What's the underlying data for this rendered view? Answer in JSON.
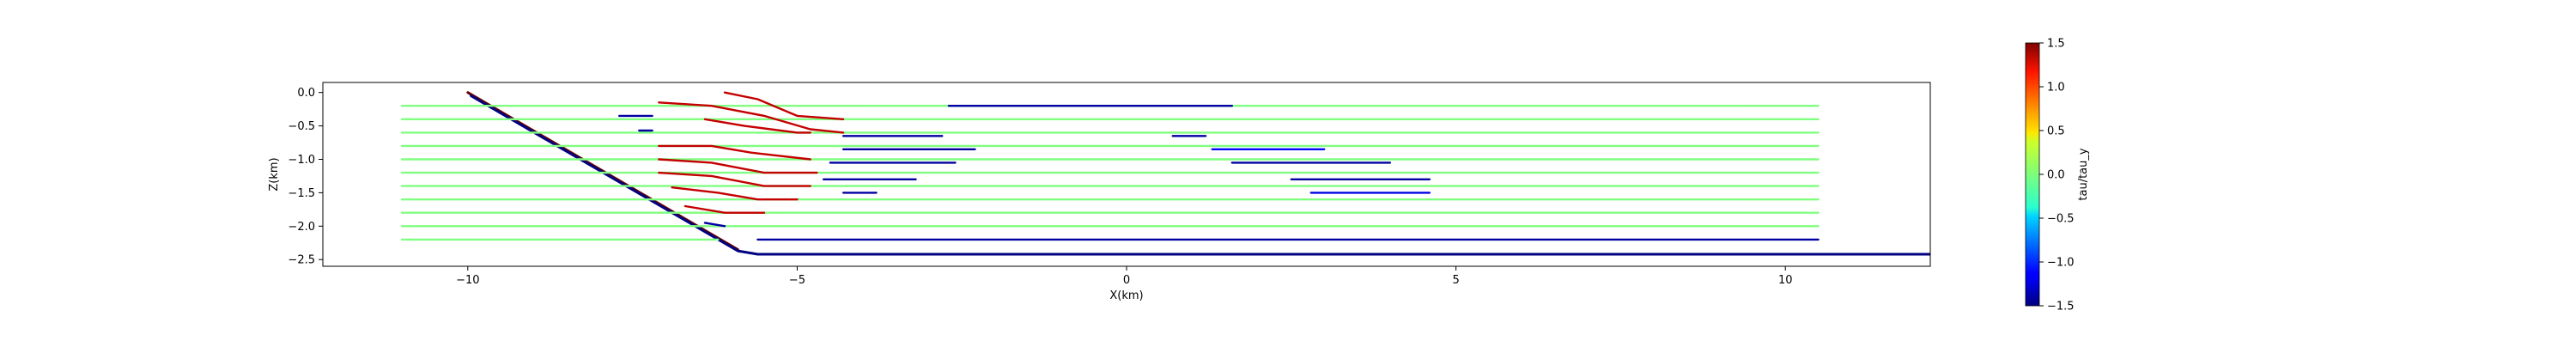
{
  "chart_data": {
    "type": "line",
    "title": "",
    "xlabel": "X(km)",
    "ylabel": "Z(km)",
    "xlim": [
      -12.2,
      12.2
    ],
    "ylim": [
      -2.6,
      0.15
    ],
    "xticks": [
      -10,
      -5,
      0,
      5,
      10
    ],
    "xtick_labels": [
      "−10",
      "−5",
      "0",
      "5",
      "10"
    ],
    "yticks": [
      0.0,
      -0.5,
      -1.0,
      -1.5,
      -2.0,
      -2.5
    ],
    "ytick_labels": [
      "0.0",
      "−0.5",
      "−1.0",
      "−1.5",
      "−2.0",
      "−2.5"
    ],
    "grid": false,
    "colorbar": {
      "label": "tau/tau_y",
      "colormap": "jet",
      "range": [
        -1.5,
        1.5
      ],
      "ticks": [
        1.5,
        1.0,
        0.5,
        0.0,
        -0.5,
        -1.0,
        -1.5
      ],
      "tick_labels": [
        "1.5",
        "1.0",
        "0.5",
        "0.0",
        "−0.5",
        "−1.0",
        "−1.5"
      ]
    },
    "layer_depths": [
      -0.2,
      -0.4,
      -0.6,
      -0.8,
      -1.0,
      -1.2,
      -1.4,
      -1.6,
      -1.8,
      -2.0,
      -2.2
    ],
    "layer_x_range": [
      -11.0,
      10.5
    ],
    "series": [
      {
        "role": "fault",
        "color": "#6b0000",
        "points": [
          [
            -10.0,
            0.0
          ],
          [
            -5.9,
            -2.35
          ]
        ]
      },
      {
        "role": "fault",
        "color": "#000080",
        "points": [
          [
            -9.95,
            -0.05
          ],
          [
            -5.9,
            -2.37
          ],
          [
            -5.6,
            -2.42
          ],
          [
            12.2,
            -2.42
          ]
        ]
      },
      {
        "role": "layer",
        "tau": 0.0,
        "points": [
          [
            -11.0,
            -0.2
          ],
          [
            -4.3,
            -0.2
          ]
        ]
      },
      {
        "role": "layer",
        "tau": 0.0,
        "points": [
          [
            -11.0,
            -0.4
          ],
          [
            -4.3,
            -0.4
          ]
        ]
      },
      {
        "role": "layer",
        "tau": 0.0,
        "points": [
          [
            -11.0,
            -0.6
          ],
          [
            -4.8,
            -0.6
          ]
        ]
      },
      {
        "role": "layer",
        "tau": 0.0,
        "points": [
          [
            -11.0,
            -0.8
          ],
          [
            -4.8,
            -0.8
          ]
        ]
      },
      {
        "role": "layer",
        "tau": 0.0,
        "points": [
          [
            -11.0,
            -1.0
          ],
          [
            -4.8,
            -1.0
          ]
        ]
      },
      {
        "role": "layer",
        "tau": 0.0,
        "points": [
          [
            -11.0,
            -1.2
          ],
          [
            -4.7,
            -1.2
          ]
        ]
      },
      {
        "role": "layer",
        "tau": 0.0,
        "points": [
          [
            -11.0,
            -1.4
          ],
          [
            -4.8,
            -1.4
          ]
        ]
      },
      {
        "role": "layer",
        "tau": 0.0,
        "points": [
          [
            -11.0,
            -1.6
          ],
          [
            -5.0,
            -1.6
          ]
        ]
      },
      {
        "role": "layer",
        "tau": 0.0,
        "points": [
          [
            -11.0,
            -1.8
          ],
          [
            -5.3,
            -1.8
          ]
        ]
      },
      {
        "role": "layer",
        "tau": 0.0,
        "points": [
          [
            -11.0,
            -2.0
          ],
          [
            -5.7,
            -2.0
          ]
        ]
      },
      {
        "role": "layer",
        "tau": 0.0,
        "points": [
          [
            -11.0,
            -2.2
          ],
          [
            -6.2,
            -2.2
          ]
        ]
      },
      {
        "role": "layer",
        "tau": 0.0,
        "points": [
          [
            -4.3,
            -0.2
          ],
          [
            10.5,
            -0.2
          ]
        ]
      },
      {
        "role": "layer",
        "tau": 0.0,
        "points": [
          [
            -4.3,
            -0.4
          ],
          [
            10.5,
            -0.4
          ]
        ]
      },
      {
        "role": "layer",
        "tau": 0.0,
        "points": [
          [
            -4.8,
            -0.6
          ],
          [
            10.5,
            -0.6
          ]
        ]
      },
      {
        "role": "layer",
        "tau": 0.0,
        "points": [
          [
            -4.8,
            -0.8
          ],
          [
            10.5,
            -0.8
          ]
        ]
      },
      {
        "role": "layer",
        "tau": 0.0,
        "points": [
          [
            -4.8,
            -1.0
          ],
          [
            10.5,
            -1.0
          ]
        ]
      },
      {
        "role": "layer",
        "tau": 0.0,
        "points": [
          [
            -4.7,
            -1.2
          ],
          [
            10.5,
            -1.2
          ]
        ]
      },
      {
        "role": "layer",
        "tau": 0.0,
        "points": [
          [
            -4.8,
            -1.4
          ],
          [
            10.5,
            -1.4
          ]
        ]
      },
      {
        "role": "layer",
        "tau": 0.0,
        "points": [
          [
            -5.0,
            -1.6
          ],
          [
            10.5,
            -1.6
          ]
        ]
      },
      {
        "role": "layer",
        "tau": 0.0,
        "points": [
          [
            -5.3,
            -1.8
          ],
          [
            10.5,
            -1.8
          ]
        ]
      },
      {
        "role": "layer",
        "tau": 0.0,
        "points": [
          [
            -5.7,
            -2.0
          ],
          [
            10.5,
            -2.0
          ]
        ]
      },
      {
        "role": "layer",
        "tau": 1.3,
        "points": [
          [
            -6.1,
            0.0
          ],
          [
            -5.6,
            -0.1
          ],
          [
            -5.0,
            -0.35
          ],
          [
            -4.3,
            -0.4
          ]
        ]
      },
      {
        "role": "layer",
        "tau": 1.3,
        "points": [
          [
            -7.1,
            -0.15
          ],
          [
            -6.3,
            -0.2
          ],
          [
            -5.5,
            -0.35
          ],
          [
            -4.8,
            -0.55
          ],
          [
            -4.3,
            -0.6
          ]
        ]
      },
      {
        "role": "layer",
        "tau": 1.3,
        "points": [
          [
            -6.4,
            -0.4
          ],
          [
            -5.8,
            -0.5
          ],
          [
            -5.0,
            -0.6
          ],
          [
            -4.8,
            -0.6
          ]
        ]
      },
      {
        "role": "layer",
        "tau": 1.3,
        "points": [
          [
            -7.1,
            -0.8
          ],
          [
            -6.3,
            -0.8
          ],
          [
            -5.7,
            -0.9
          ],
          [
            -4.8,
            -1.0
          ]
        ]
      },
      {
        "role": "layer",
        "tau": 1.3,
        "points": [
          [
            -7.1,
            -1.0
          ],
          [
            -6.3,
            -1.05
          ],
          [
            -5.5,
            -1.2
          ],
          [
            -4.7,
            -1.2
          ]
        ]
      },
      {
        "role": "layer",
        "tau": 1.3,
        "points": [
          [
            -7.1,
            -1.2
          ],
          [
            -6.3,
            -1.25
          ],
          [
            -5.5,
            -1.4
          ],
          [
            -4.8,
            -1.4
          ]
        ]
      },
      {
        "role": "layer",
        "tau": 1.3,
        "points": [
          [
            -6.9,
            -1.42
          ],
          [
            -6.2,
            -1.5
          ],
          [
            -5.6,
            -1.6
          ],
          [
            -5.0,
            -1.6
          ]
        ]
      },
      {
        "role": "layer",
        "tau": 1.3,
        "points": [
          [
            -6.7,
            -1.7
          ],
          [
            -6.1,
            -1.8
          ],
          [
            -5.5,
            -1.8
          ]
        ]
      },
      {
        "role": "layer",
        "tau": -1.4,
        "points": [
          [
            -6.4,
            -1.95
          ],
          [
            -6.1,
            -2.0
          ]
        ]
      },
      {
        "role": "layer",
        "tau": -1.4,
        "points": [
          [
            -7.7,
            -0.35
          ],
          [
            -7.2,
            -0.35
          ]
        ]
      },
      {
        "role": "layer",
        "tau": -1.4,
        "points": [
          [
            -7.4,
            -0.57
          ],
          [
            -7.2,
            -0.57
          ]
        ]
      },
      {
        "role": "layer",
        "tau": -1.4,
        "points": [
          [
            -2.7,
            -0.2
          ],
          [
            1.6,
            -0.2
          ]
        ]
      },
      {
        "role": "layer",
        "tau": -1.4,
        "points": [
          [
            -4.3,
            -0.65
          ],
          [
            -2.8,
            -0.65
          ]
        ]
      },
      {
        "role": "layer",
        "tau": -1.4,
        "points": [
          [
            -4.3,
            -0.85
          ],
          [
            -2.3,
            -0.85
          ]
        ]
      },
      {
        "role": "layer",
        "tau": -1.4,
        "points": [
          [
            -4.5,
            -1.05
          ],
          [
            -2.6,
            -1.05
          ]
        ]
      },
      {
        "role": "layer",
        "tau": -1.4,
        "points": [
          [
            -4.6,
            -1.3
          ],
          [
            -3.2,
            -1.3
          ]
        ]
      },
      {
        "role": "layer",
        "tau": -1.4,
        "points": [
          [
            -4.3,
            -1.5
          ],
          [
            -3.8,
            -1.5
          ]
        ]
      },
      {
        "role": "layer",
        "tau": -1.4,
        "points": [
          [
            0.7,
            -0.65
          ],
          [
            1.2,
            -0.65
          ]
        ]
      },
      {
        "role": "layer",
        "tau": -1.1,
        "points": [
          [
            1.3,
            -0.85
          ],
          [
            3.0,
            -0.85
          ]
        ]
      },
      {
        "role": "layer",
        "tau": -1.4,
        "points": [
          [
            1.6,
            -1.05
          ],
          [
            4.0,
            -1.05
          ]
        ]
      },
      {
        "role": "layer",
        "tau": -1.4,
        "points": [
          [
            2.5,
            -1.3
          ],
          [
            4.6,
            -1.3
          ]
        ]
      },
      {
        "role": "layer",
        "tau": -1.2,
        "points": [
          [
            2.8,
            -1.5
          ],
          [
            4.6,
            -1.5
          ]
        ]
      },
      {
        "role": "layer",
        "tau": -1.4,
        "points": [
          [
            -5.6,
            -2.2
          ],
          [
            10.5,
            -2.2
          ]
        ]
      }
    ]
  }
}
